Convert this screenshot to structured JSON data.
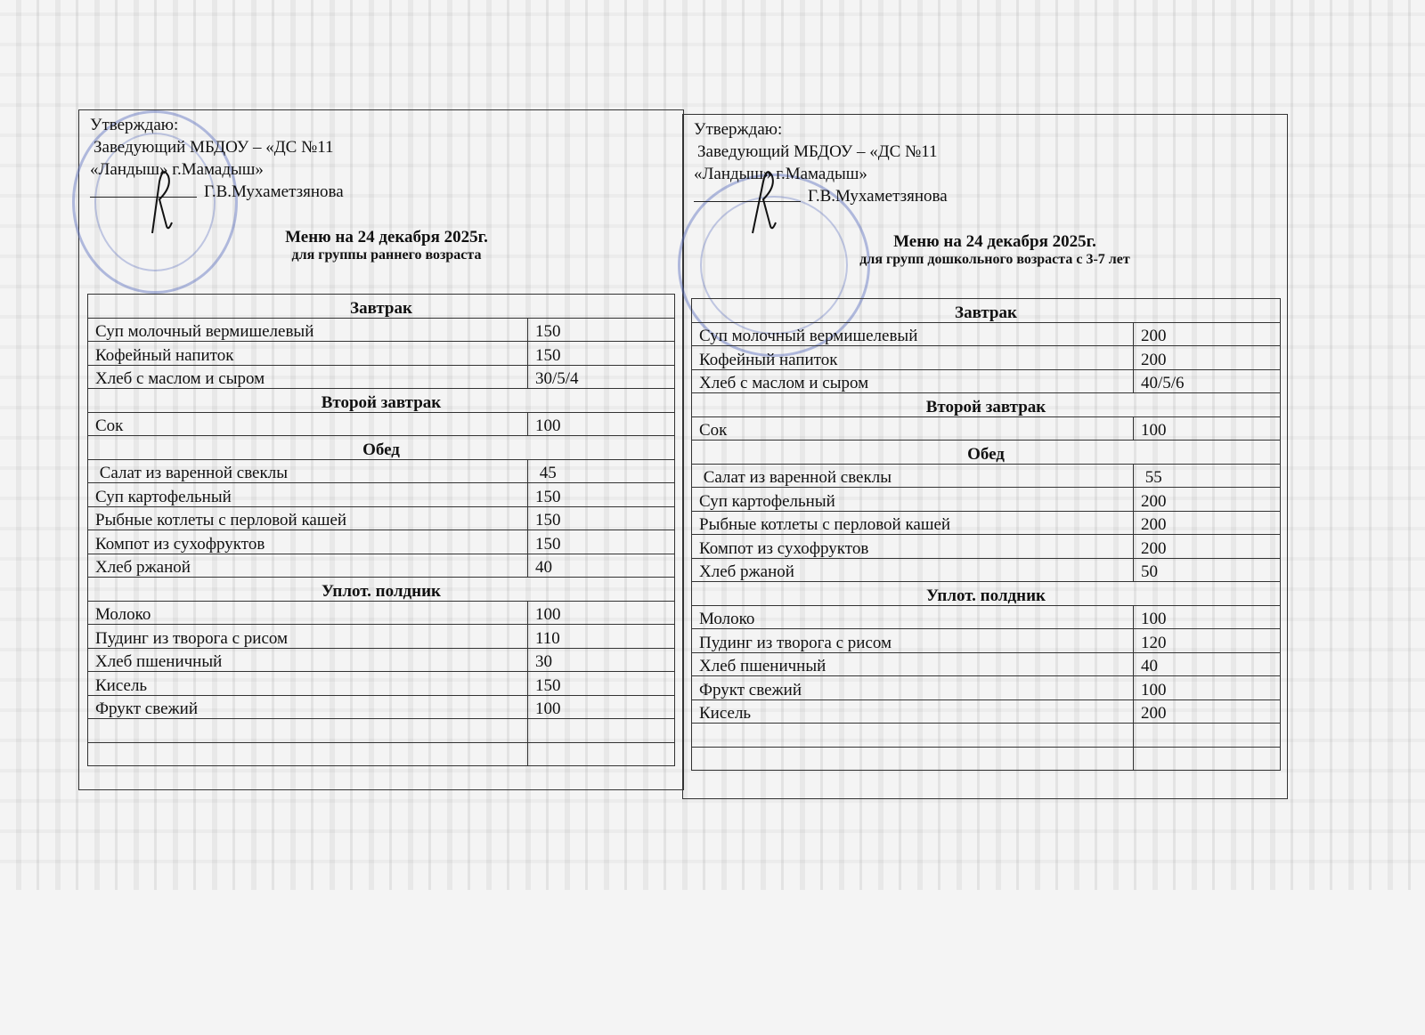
{
  "menus": [
    {
      "approve": "Утверждаю:",
      "position": "Заведующий МБДОУ – «ДС №11",
      "org": "«Ландыш» г.Мамадыш»",
      "signer": "Г.В.Мухаметзянова",
      "title": "Меню на 24 декабря 2025г.",
      "subtitle": "для группы раннего возраста",
      "rows": [
        {
          "section": "Завтрак"
        },
        {
          "name": "Суп молочный вермишелевый",
          "qty": "150"
        },
        {
          "name": "Кофейный напиток",
          "qty": "150"
        },
        {
          "name": "Хлеб с маслом и сыром",
          "qty": "30/5/4"
        },
        {
          "section": "Второй завтрак"
        },
        {
          "name": "Сок",
          "qty": "100"
        },
        {
          "section": "Обед"
        },
        {
          "name": " Салат из варенной свеклы",
          "qty": " 45"
        },
        {
          "name": "Суп картофельный",
          "qty": "150"
        },
        {
          "name": "Рыбные котлеты с перловой кашей",
          "qty": "150"
        },
        {
          "name": "Компот из сухофруктов",
          "qty": "150"
        },
        {
          "name": "Хлеб ржаной",
          "qty": "40"
        },
        {
          "section": "Уплот. полдник"
        },
        {
          "name": "Молоко",
          "qty": "100"
        },
        {
          "name": "Пудинг из творога с рисом",
          "qty": "110"
        },
        {
          "name": "Хлеб пшеничный",
          "qty": "30"
        },
        {
          "name": "Кисель",
          "qty": "150"
        },
        {
          "name": "Фрукт свежий",
          "qty": "100"
        },
        {
          "name": "",
          "qty": ""
        },
        {
          "name": "",
          "qty": ""
        }
      ]
    },
    {
      "approve": "Утверждаю:",
      "position": "Заведующий МБДОУ – «ДС №11",
      "org": "«Ландыш» г.Мамадыш»",
      "signer": "Г.В.Мухаметзянова",
      "title": "Меню на 24 декабря 2025г.",
      "subtitle": "для групп дошкольного возраста с 3-7 лет",
      "rows": [
        {
          "section": "Завтрак"
        },
        {
          "name": "Суп молочный вермишелевый",
          "qty": "200"
        },
        {
          "name": "Кофейный напиток",
          "qty": "200"
        },
        {
          "name": "Хлеб с маслом и сыром",
          "qty": "40/5/6"
        },
        {
          "section": "Второй завтрак"
        },
        {
          "name": "Сок",
          "qty": "100"
        },
        {
          "section": "Обед"
        },
        {
          "name": " Салат из варенной свеклы",
          "qty": " 55"
        },
        {
          "name": "Суп картофельный",
          "qty": "200"
        },
        {
          "name": "Рыбные котлеты с перловой кашей",
          "qty": "200"
        },
        {
          "name": "Компот из сухофруктов",
          "qty": "200"
        },
        {
          "name": "Хлеб ржаной",
          "qty": "50"
        },
        {
          "section": "Уплот. полдник"
        },
        {
          "name": "Молоко",
          "qty": "100"
        },
        {
          "name": "Пудинг из творога с рисом",
          "qty": "120"
        },
        {
          "name": "Хлеб пшеничный",
          "qty": "40"
        },
        {
          "name": "Фрукт свежий",
          "qty": "100"
        },
        {
          "name": "Кисель",
          "qty": "200"
        },
        {
          "name": "",
          "qty": ""
        },
        {
          "name": "",
          "qty": ""
        }
      ]
    }
  ],
  "colors": {
    "stamp": "#5a6ebe",
    "ink": "#111111"
  }
}
